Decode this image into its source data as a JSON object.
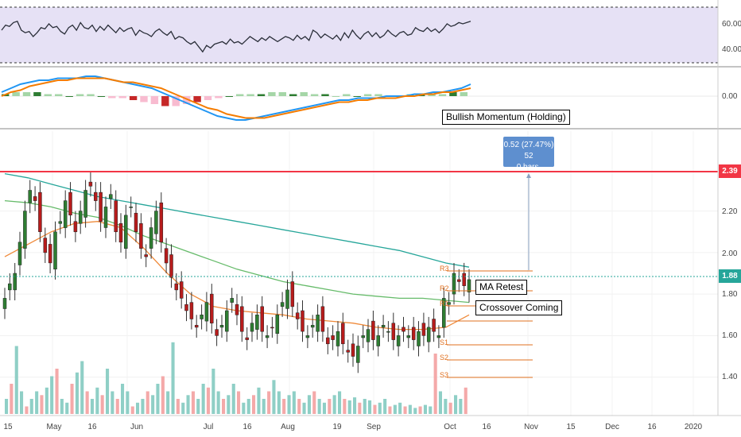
{
  "rsi": {
    "ticks": [
      "60.00",
      "40.00"
    ],
    "values": [
      55,
      59,
      58,
      61,
      62,
      55,
      53,
      54,
      50,
      53,
      57,
      56,
      60,
      57,
      58,
      54,
      52,
      57,
      59,
      55,
      61,
      57,
      56,
      59,
      54,
      58,
      55,
      59,
      56,
      53,
      57,
      54,
      56,
      57,
      51,
      55,
      53,
      52,
      50,
      54,
      56,
      53,
      51,
      54,
      48,
      50,
      49,
      46,
      44,
      46,
      42,
      38,
      43,
      41,
      44,
      45,
      46,
      44,
      48,
      45,
      46,
      44,
      47,
      50,
      48,
      46,
      49,
      47,
      50,
      48,
      46,
      48,
      50,
      49,
      47,
      51,
      48,
      50,
      47,
      55,
      53,
      49,
      52,
      50,
      48,
      51,
      47,
      53,
      49,
      55,
      51,
      48,
      52,
      54,
      50,
      53,
      49,
      51,
      55,
      52,
      50,
      53,
      54,
      51,
      52,
      57,
      55,
      54,
      57,
      54,
      56,
      53,
      56,
      60,
      58,
      59,
      61,
      60,
      61,
      62
    ]
  },
  "macd": {
    "tick": "0.00",
    "annotation": "Bullish Momentum (Holding)",
    "macd_line": [
      0.02,
      0.04,
      0.06,
      0.07,
      0.08,
      0.08,
      0.09,
      0.09,
      0.09,
      0.1,
      0.1,
      0.09,
      0.08,
      0.07,
      0.06,
      0.05,
      0.04,
      0.02,
      0.0,
      -0.02,
      -0.04,
      -0.06,
      -0.08,
      -0.1,
      -0.11,
      -0.12,
      -0.12,
      -0.11,
      -0.1,
      -0.09,
      -0.08,
      -0.07,
      -0.06,
      -0.05,
      -0.04,
      -0.03,
      -0.02,
      -0.02,
      -0.01,
      -0.01,
      -0.01,
      0.0,
      0.0,
      0.0,
      0.01,
      0.01,
      0.02,
      0.02,
      0.03,
      0.04,
      0.06
    ],
    "signal_line": [
      0.0,
      0.02,
      0.03,
      0.05,
      0.06,
      0.07,
      0.08,
      0.08,
      0.09,
      0.09,
      0.09,
      0.09,
      0.08,
      0.07,
      0.07,
      0.06,
      0.05,
      0.04,
      0.02,
      0.0,
      -0.02,
      -0.04,
      -0.06,
      -0.07,
      -0.09,
      -0.1,
      -0.11,
      -0.11,
      -0.11,
      -0.1,
      -0.09,
      -0.08,
      -0.07,
      -0.06,
      -0.05,
      -0.04,
      -0.03,
      -0.03,
      -0.02,
      -0.02,
      -0.01,
      -0.01,
      -0.01,
      0.0,
      0.0,
      0.01,
      0.01,
      0.02,
      0.02,
      0.03,
      0.04
    ],
    "histogram": [
      0.01,
      0.02,
      0.02,
      0.02,
      0.01,
      0.01,
      0.0,
      0.01,
      0.01,
      0.0,
      -0.01,
      -0.01,
      -0.02,
      -0.03,
      -0.04,
      -0.05,
      -0.05,
      -0.04,
      -0.03,
      -0.02,
      -0.01,
      0.0,
      0.01,
      0.01,
      0.01,
      0.02,
      0.02,
      0.01,
      0.02,
      0.01,
      0.01,
      0.0,
      0.01,
      0.0,
      0.01,
      0.01,
      0.0,
      0.0,
      0.01,
      0.01,
      0.01,
      0.01,
      0.02,
      0.02
    ]
  },
  "price": {
    "ticks": [
      "2.20",
      "2.00",
      "1.80",
      "1.60",
      "1.40"
    ],
    "resistance_value": "2.39",
    "current_value": "1.88",
    "measure_line1": "0.52 (27.47%) 52",
    "measure_line2": "0 bars,",
    "label_ma_retest": "MA Retest",
    "label_crossover": "Crossover Coming",
    "levels": [
      "R3",
      "R2",
      "R1",
      "S1",
      "S2",
      "S3"
    ],
    "colors": {
      "resistance": "#f23645",
      "current": "#26a69a",
      "up": "#2e7d32",
      "down": "#b71c1c",
      "ma_teal": "#26a69a",
      "ma_green": "#66bb6a",
      "ma_orange": "#ef8a3a",
      "levels": "#e0701f"
    }
  },
  "xaxis": [
    "15",
    "May",
    "16",
    "Jun",
    "Jul",
    "16",
    "Aug",
    "19",
    "Sep",
    "Oct",
    "16",
    "Nov",
    "15",
    "Dec",
    "16",
    "2020"
  ]
}
